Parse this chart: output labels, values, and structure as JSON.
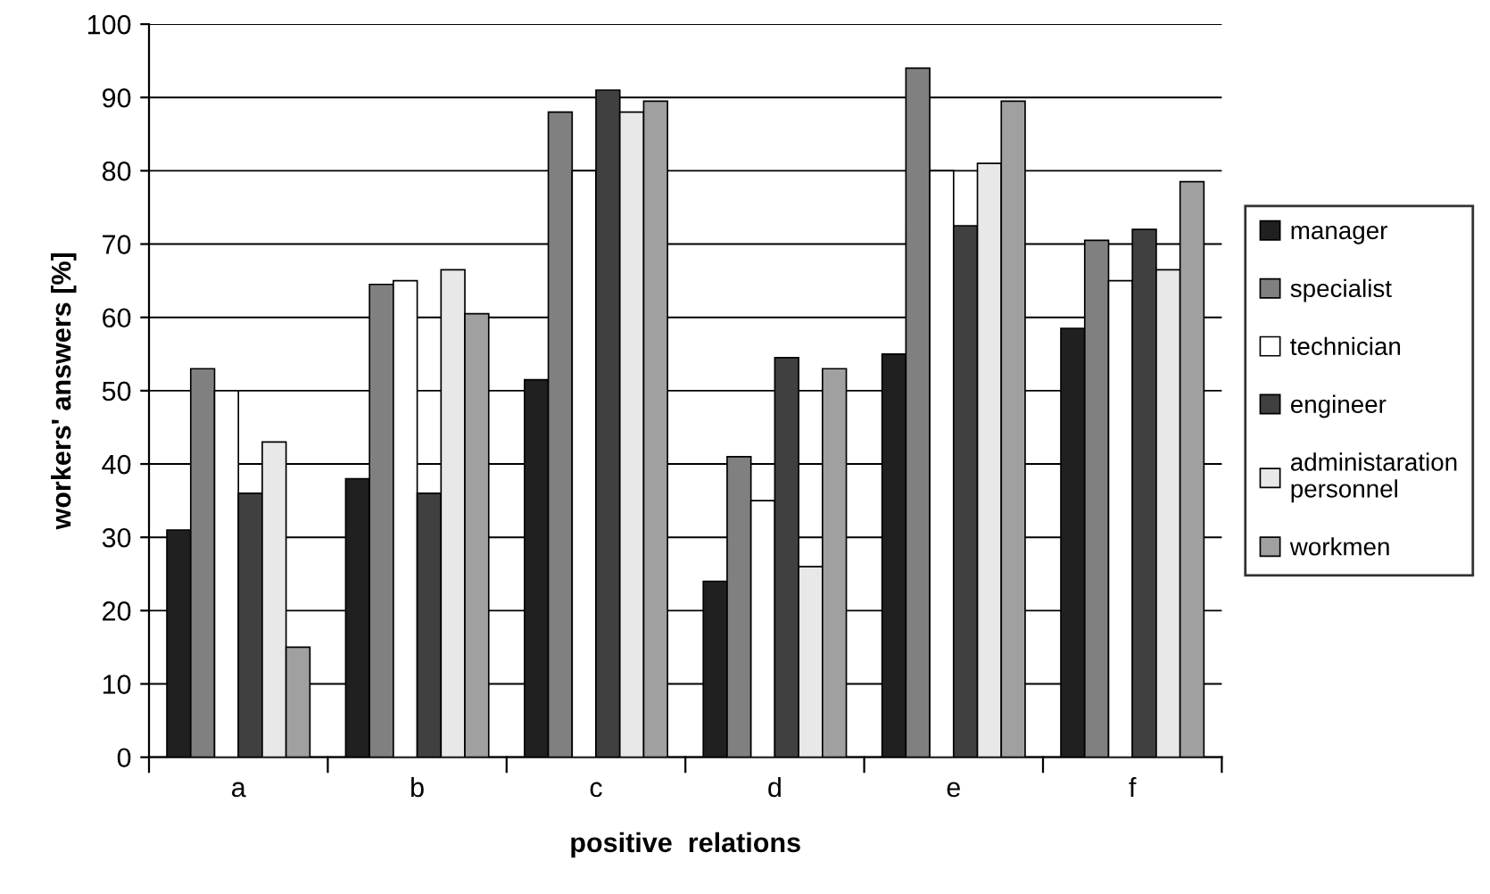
{
  "chart_data": {
    "type": "bar",
    "xlabel": "positive  relations",
    "ylabel": "workers' answers [%]",
    "categories": [
      "a",
      "b",
      "c",
      "d",
      "e",
      "f"
    ],
    "series": [
      {
        "name": "manager",
        "color": "#202020",
        "values": [
          31,
          38,
          51.5,
          24,
          55,
          58.5
        ]
      },
      {
        "name": "specialist",
        "color": "#808080",
        "values": [
          53,
          64.5,
          88,
          41,
          94,
          70.5
        ]
      },
      {
        "name": "technician",
        "color": "#ffffff",
        "values": [
          50,
          65,
          80,
          35,
          80,
          65
        ]
      },
      {
        "name": "engineer",
        "color": "#404040",
        "values": [
          36,
          36,
          91,
          54.5,
          72.5,
          72
        ]
      },
      {
        "name": "administaration\npersonnel",
        "color": "#e8e8e8",
        "values": [
          43,
          66.5,
          88,
          26,
          81,
          66.5
        ]
      },
      {
        "name": "workmen",
        "color": "#a0a0a0",
        "values": [
          15,
          60.5,
          89.5,
          53,
          89.5,
          78.5
        ]
      }
    ],
    "ylim": [
      0,
      100
    ],
    "yticks": [
      0,
      10,
      20,
      30,
      40,
      50,
      60,
      70,
      80,
      90,
      100
    ],
    "grid": "y",
    "legend": "right"
  }
}
